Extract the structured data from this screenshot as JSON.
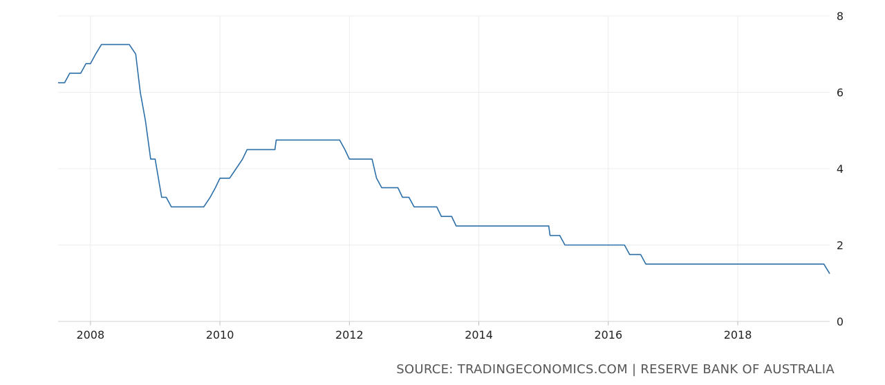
{
  "chart_data": {
    "type": "line",
    "title": "",
    "xlabel": "",
    "ylabel": "",
    "xlim": [
      2007.5,
      2019.42
    ],
    "ylim": [
      0,
      8
    ],
    "x_ticks": [
      2008,
      2010,
      2012,
      2014,
      2016,
      2018
    ],
    "x_tick_labels": [
      "2008",
      "2010",
      "2012",
      "2014",
      "2016",
      "2018"
    ],
    "y_ticks": [
      0,
      2,
      4,
      6,
      8
    ],
    "y_tick_labels": [
      "0",
      "2",
      "4",
      "6",
      "8"
    ],
    "y_axis_side": "right",
    "grid": true,
    "line_color": "#2b6ea8",
    "series": [
      {
        "step": true,
        "points": [
          [
            2007.5,
            6.25
          ],
          [
            2007.6,
            6.25
          ],
          [
            2007.68,
            6.5
          ],
          [
            2007.85,
            6.5
          ],
          [
            2007.93,
            6.75
          ],
          [
            2008.0,
            6.75
          ],
          [
            2008.08,
            7.0
          ],
          [
            2008.17,
            7.25
          ],
          [
            2008.6,
            7.25
          ],
          [
            2008.7,
            7.0
          ],
          [
            2008.77,
            6.0
          ],
          [
            2008.85,
            5.25
          ],
          [
            2008.93,
            4.25
          ],
          [
            2009.0,
            4.25
          ],
          [
            2009.1,
            3.25
          ],
          [
            2009.17,
            3.25
          ],
          [
            2009.25,
            3.0
          ],
          [
            2009.75,
            3.0
          ],
          [
            2009.85,
            3.25
          ],
          [
            2009.93,
            3.5
          ],
          [
            2010.0,
            3.75
          ],
          [
            2010.15,
            3.75
          ],
          [
            2010.25,
            4.0
          ],
          [
            2010.35,
            4.25
          ],
          [
            2010.42,
            4.5
          ],
          [
            2010.85,
            4.5
          ],
          [
            2010.87,
            4.75
          ],
          [
            2011.85,
            4.75
          ],
          [
            2011.93,
            4.5
          ],
          [
            2012.0,
            4.25
          ],
          [
            2012.35,
            4.25
          ],
          [
            2012.42,
            3.75
          ],
          [
            2012.5,
            3.5
          ],
          [
            2012.75,
            3.5
          ],
          [
            2012.82,
            3.25
          ],
          [
            2012.92,
            3.25
          ],
          [
            2013.0,
            3.0
          ],
          [
            2013.35,
            3.0
          ],
          [
            2013.42,
            2.75
          ],
          [
            2013.58,
            2.75
          ],
          [
            2013.65,
            2.5
          ],
          [
            2015.08,
            2.5
          ],
          [
            2015.1,
            2.25
          ],
          [
            2015.25,
            2.25
          ],
          [
            2015.33,
            2.0
          ],
          [
            2016.25,
            2.0
          ],
          [
            2016.33,
            1.75
          ],
          [
            2016.5,
            1.75
          ],
          [
            2016.58,
            1.5
          ],
          [
            2019.33,
            1.5
          ],
          [
            2019.42,
            1.25
          ]
        ]
      }
    ]
  },
  "source": "SOURCE: TRADINGECONOMICS.COM | RESERVE BANK OF AUSTRALIA"
}
